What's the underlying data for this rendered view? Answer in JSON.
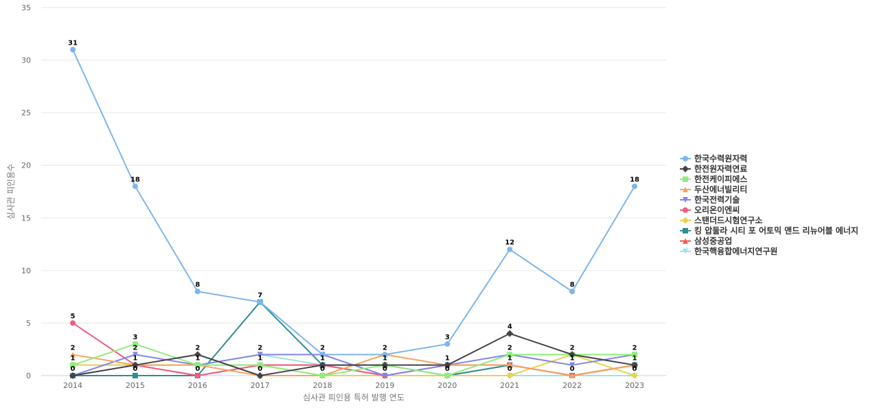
{
  "chart_data": {
    "type": "line",
    "xlabel": "심사관 피인용 특허 발행 연도",
    "ylabel": "심사관 피인용수",
    "ylim": [
      0,
      35
    ],
    "yticks": [
      0,
      5,
      10,
      15,
      20,
      25,
      30,
      35
    ],
    "grid": true,
    "legend_position": "right",
    "categories": [
      "2014",
      "2015",
      "2016",
      "2017",
      "2018",
      "2019",
      "2020",
      "2021",
      "2022",
      "2023"
    ],
    "series": [
      {
        "name": "한국수력원자력",
        "color": "#7cb5ec",
        "marker": "circle",
        "values": [
          31,
          18,
          8,
          7,
          2,
          2,
          3,
          12,
          8,
          18
        ]
      },
      {
        "name": "한전원자력연료",
        "color": "#434348",
        "marker": "diamond",
        "values": [
          0,
          1,
          2,
          0,
          1,
          1,
          1,
          4,
          2,
          1
        ]
      },
      {
        "name": "한전케이피에스",
        "color": "#90ed7d",
        "marker": "square",
        "values": [
          1,
          3,
          1,
          1,
          0,
          1,
          0,
          2,
          2,
          2
        ]
      },
      {
        "name": "두산에너빌리티",
        "color": "#f7a35c",
        "marker": "triangle",
        "values": [
          2,
          1,
          1,
          0,
          0,
          2,
          1,
          1,
          0,
          1
        ]
      },
      {
        "name": "한국전력기술",
        "color": "#8085e9",
        "marker": "triangle-down",
        "values": [
          0,
          2,
          1,
          2,
          2,
          0,
          1,
          2,
          1,
          2
        ]
      },
      {
        "name": "오리온이엔씨",
        "color": "#f15c80",
        "marker": "circle",
        "values": [
          5,
          1,
          0,
          1,
          1,
          0,
          1,
          1,
          0,
          1
        ]
      },
      {
        "name": "스탠더드시험연구소",
        "color": "#e4d354",
        "marker": "diamond",
        "values": [
          1,
          1,
          1,
          1,
          0,
          0,
          0,
          0,
          2,
          0
        ]
      },
      {
        "name": "킹 압둘라 시티 포 어토믹 앤드 리뉴어블 에너지",
        "color": "#2b908f",
        "marker": "square",
        "values": [
          0,
          0,
          0,
          7,
          1,
          1,
          0,
          1,
          0,
          1
        ]
      },
      {
        "name": "삼성중공업",
        "color": "#f45b5b",
        "marker": "triangle",
        "values": [
          0,
          1,
          0,
          1,
          1,
          0,
          0,
          1,
          0,
          1
        ]
      },
      {
        "name": "한국핵융합에너지연구원",
        "color": "#91e8e1",
        "marker": "triangle-down",
        "values": [
          1,
          1,
          1,
          2,
          1,
          0,
          0,
          0,
          0,
          0
        ]
      }
    ],
    "data_labels": [
      {
        "x": "2014",
        "texts": [
          "31",
          "5",
          "2",
          "1",
          "0"
        ]
      },
      {
        "x": "2015",
        "texts": [
          "18",
          "3",
          "2",
          "1",
          "0"
        ]
      },
      {
        "x": "2016",
        "texts": [
          "8",
          "2",
          "1",
          "0"
        ]
      },
      {
        "x": "2017",
        "texts": [
          "7",
          "2",
          "1",
          "0"
        ]
      },
      {
        "x": "2018",
        "texts": [
          "2",
          "1",
          "0"
        ]
      },
      {
        "x": "2019",
        "texts": [
          "2",
          "1",
          "0"
        ]
      },
      {
        "x": "2020",
        "texts": [
          "3",
          "1",
          "0"
        ]
      },
      {
        "x": "2021",
        "texts": [
          "12",
          "4",
          "2",
          "1",
          "0"
        ]
      },
      {
        "x": "2022",
        "texts": [
          "8",
          "2",
          "1",
          "0"
        ]
      },
      {
        "x": "2023",
        "texts": [
          "18",
          "2",
          "1",
          "0"
        ]
      }
    ]
  }
}
